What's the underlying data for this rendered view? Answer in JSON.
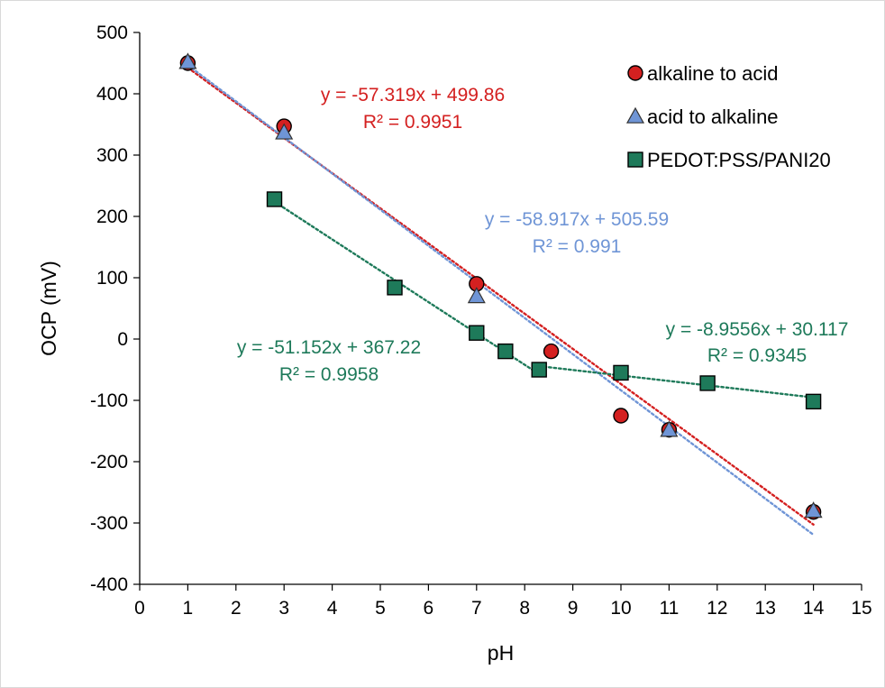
{
  "chart_data": {
    "type": "scatter",
    "title": "",
    "xlabel": "pH",
    "ylabel": "OCP (mV)",
    "xlim": [
      0,
      15
    ],
    "ylim": [
      -400,
      500
    ],
    "x_ticks": [
      "0",
      "1",
      "2",
      "3",
      "4",
      "5",
      "6",
      "7",
      "8",
      "9",
      "10",
      "11",
      "12",
      "13",
      "14",
      "15"
    ],
    "y_ticks": [
      "500",
      "400",
      "300",
      "200",
      "100",
      "0",
      "-100",
      "-200",
      "-300",
      "-400"
    ],
    "grid": false,
    "legend_position": "top-right",
    "series": [
      {
        "name": "alkaline to acid",
        "marker": "circle",
        "color": "#d42020",
        "points": [
          {
            "x": 1,
            "y": 450
          },
          {
            "x": 3,
            "y": 347
          },
          {
            "x": 7,
            "y": 90
          },
          {
            "x": 8.55,
            "y": -20
          },
          {
            "x": 10,
            "y": -125
          },
          {
            "x": 11,
            "y": -148
          },
          {
            "x": 14,
            "y": -282
          }
        ],
        "trendline": {
          "slope": -57.319,
          "intercept": 499.86,
          "x_range": [
            1,
            14
          ]
        }
      },
      {
        "name": "acid to alkaline",
        "marker": "triangle",
        "color": "#6f95d6",
        "points": [
          {
            "x": 1,
            "y": 452
          },
          {
            "x": 3,
            "y": 337
          },
          {
            "x": 7,
            "y": 70
          },
          {
            "x": 11,
            "y": -148
          },
          {
            "x": 14,
            "y": -280
          }
        ],
        "trendline": {
          "slope": -58.917,
          "intercept": 505.59,
          "x_range": [
            1,
            14
          ]
        }
      },
      {
        "name": "PEDOT:PSS/PANI20",
        "marker": "square",
        "color": "#1e7a5a",
        "points": [
          {
            "x": 2.8,
            "y": 228
          },
          {
            "x": 5.3,
            "y": 84
          },
          {
            "x": 7,
            "y": 10
          },
          {
            "x": 7.6,
            "y": -20
          },
          {
            "x": 8.3,
            "y": -50
          },
          {
            "x": 10,
            "y": -55
          },
          {
            "x": 11.8,
            "y": -72
          },
          {
            "x": 14,
            "y": -102
          }
        ],
        "trendlines": [
          {
            "slope": -51.152,
            "intercept": 367.22,
            "x_range": [
              2.8,
              8.3
            ]
          },
          {
            "slope": -8.9556,
            "intercept": 30.117,
            "x_range": [
              8.3,
              14
            ]
          }
        ]
      }
    ],
    "annotations": [
      {
        "line1": "y = -57.319x + 499.86",
        "line2": "R² = 0.9951",
        "color": "#d42020"
      },
      {
        "line1": "y = -58.917x + 505.59",
        "line2": "R² = 0.991",
        "color": "#6f95d6"
      },
      {
        "line1": "y = -51.152x + 367.22",
        "line2": "R² = 0.9958",
        "color": "#1e7a5a"
      },
      {
        "line1": "y = -8.9556x + 30.117",
        "line2": "R² = 0.9345",
        "color": "#1e7a5a"
      }
    ]
  }
}
